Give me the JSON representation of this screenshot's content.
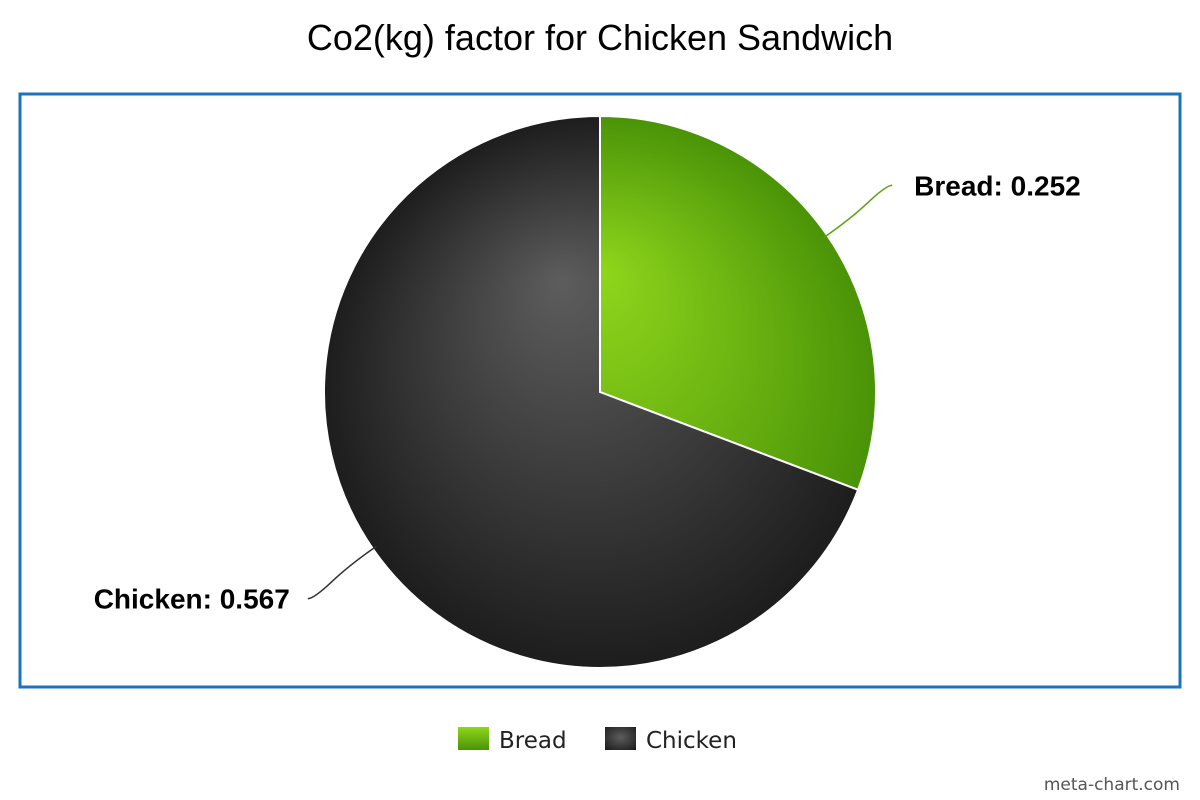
{
  "chart_data": {
    "type": "pie",
    "title": "Co2(kg) factor for Chicken Sandwich",
    "slices": [
      {
        "name": "Bread",
        "value": 0.252,
        "label": "Bread: 0.252",
        "color": "#5ca10f"
      },
      {
        "name": "Chicken",
        "value": 0.567,
        "label": "Chicken: 0.567",
        "color": "#2e2e2e"
      }
    ],
    "legend": {
      "placement": "bottom",
      "entries": [
        "Bread",
        "Chicken"
      ]
    },
    "border_color": "#1a73c0"
  },
  "credit": "meta-chart.com"
}
